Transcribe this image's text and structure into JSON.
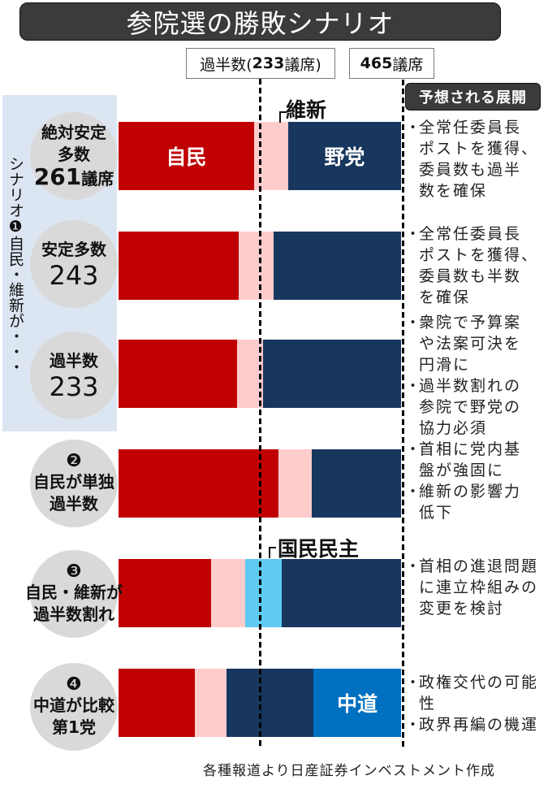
{
  "title": "参院選の勝敗シナリオ",
  "reference_boxes": {
    "majority": {
      "prefix": "過半数(",
      "number": "233",
      "suffix": "議席)"
    },
    "total": {
      "number": "465",
      "suffix": "議席"
    }
  },
  "scenario1_label": "シナリオ❶自民・維新が・・・",
  "notes_header": "予想される展開",
  "bullet": "・",
  "callouts": {
    "ishin": "維新",
    "dpfp": "国民民主"
  },
  "colors": {
    "ldp": "#C00000",
    "ishin": "#FFCCCC",
    "dpfp": "#5FCBF3",
    "opposition": "#17375E",
    "chudo": "#0070C0",
    "panel": "#DCE6F2",
    "circle": "#D9D9D9",
    "header_bg": "#3B3B3B"
  },
  "rows": [
    {
      "circle": {
        "lines": [
          "絶対安定",
          "多数"
        ],
        "big": "261",
        "big_suffix": "議席"
      },
      "labels": [
        "自民",
        "",
        "",
        "野党",
        ""
      ],
      "notes": [
        "全常任委員長\nポストを獲得、\n委員数も過半\n数を確保"
      ]
    },
    {
      "circle": {
        "lines": [
          "安定多数"
        ],
        "big": "243"
      },
      "labels": [
        "",
        "",
        "",
        "",
        ""
      ],
      "notes": [
        "全常任委員長\nポストを獲得、\n委員数も半数\nを確保"
      ]
    },
    {
      "circle": {
        "lines": [
          "過半数"
        ],
        "big": "233"
      },
      "labels": [
        "",
        "",
        "",
        "",
        ""
      ],
      "notes": [
        "衆院で予算案\nや法案可決を\n円滑に",
        "過半数割れの\n参院で野党の\n協力必須"
      ]
    },
    {
      "circle": {
        "badge": "❷",
        "lines": [
          "自民が単独",
          "過半数"
        ]
      },
      "labels": [
        "",
        "",
        "",
        "",
        ""
      ],
      "notes": [
        "首相に党内基\n盤が強固に",
        "維新の影響力\n低下"
      ]
    },
    {
      "circle": {
        "badge": "❸",
        "lines": [
          "自民・維新が",
          "過半数割れ"
        ]
      },
      "labels": [
        "",
        "",
        "",
        "",
        ""
      ],
      "notes": [
        "首相の進退問題\nに連立枠組みの\n変更を検討"
      ]
    },
    {
      "circle": {
        "badge": "❹",
        "lines": [
          "中道が比較",
          "第1党"
        ]
      },
      "labels": [
        "",
        "",
        "",
        "",
        "中道"
      ],
      "notes": [
        "政権交代の可能\n性",
        "政界再編の機運"
      ]
    }
  ],
  "footer": "各種報道より日産証券インベストメント作成",
  "chart_data": {
    "type": "bar",
    "orientation": "horizontal",
    "stacked": true,
    "title": "参院選の勝敗シナリオ",
    "xlabel": "議席",
    "ylabel": "",
    "xlim": [
      0,
      465
    ],
    "total_seats": 465,
    "reference_lines": [
      {
        "value": 233,
        "label": "過半数(233議席)",
        "style": "dashed"
      },
      {
        "value": 465,
        "label": "465議席",
        "style": "dashed"
      }
    ],
    "categories": [
      "絶対安定多数 261議席",
      "安定多数 243",
      "過半数 233",
      "❷自民が単独過半数",
      "❸自民・維新が過半数割れ",
      "❹中道が比較第1党"
    ],
    "series": [
      {
        "name": "自民",
        "color": "#C00000",
        "values": [
          223,
          198,
          195,
          263,
          152,
          126
        ]
      },
      {
        "name": "維新",
        "color": "#FFCCCC",
        "values": [
          56,
          57,
          43,
          55,
          57,
          52
        ]
      },
      {
        "name": "国民民主",
        "color": "#5FCBF3",
        "values": [
          0,
          0,
          0,
          0,
          59,
          0
        ]
      },
      {
        "name": "野党",
        "color": "#17375E",
        "values": [
          186,
          210,
          227,
          147,
          197,
          143
        ]
      },
      {
        "name": "中道",
        "color": "#0070C0",
        "values": [
          0,
          0,
          0,
          0,
          0,
          144
        ]
      }
    ],
    "legend": "inline labels (自民, 維新, 野党, 国民民主, 中道)",
    "grid": false,
    "note": "Segment sizes estimated from bar pixel widths; schematic illustration"
  }
}
